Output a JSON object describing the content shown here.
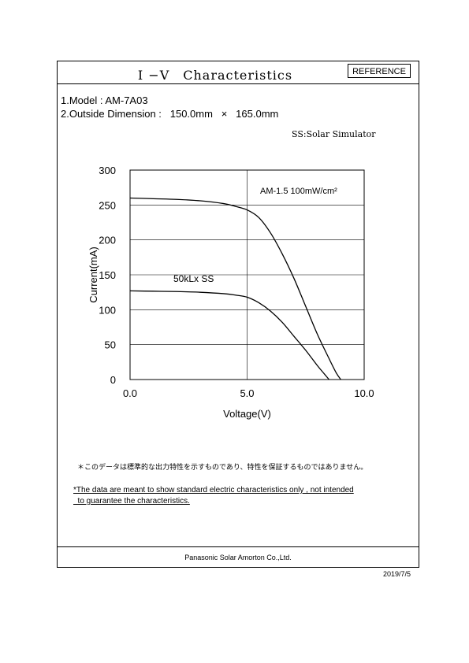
{
  "header": {
    "title": "I −V　Characteristics",
    "reference_label": "REFERENCE"
  },
  "spec": {
    "model": "1.Model : AM-7A03",
    "dimension": "2.Outside Dimension :   150.0mm   ×   165.0mm",
    "simulator_note": "SS:Solar Simulator"
  },
  "chart_data": {
    "type": "line",
    "xlabel": "Voltage(V)",
    "ylabel": "Current(mA)",
    "xlim": [
      0,
      10
    ],
    "ylim": [
      0,
      300
    ],
    "x_ticks": [
      "0.0",
      "5.0",
      "10.0"
    ],
    "y_ticks": [
      "0",
      "50",
      "100",
      "150",
      "200",
      "250",
      "300"
    ],
    "grid": true,
    "series": [
      {
        "name": "AM-1.5 100mW/cm²",
        "x": [
          0,
          1,
          2,
          3,
          4,
          4.5,
          5,
          5.5,
          6,
          6.5,
          7,
          7.5,
          8,
          8.5,
          8.8,
          9.0
        ],
        "y": [
          260,
          259,
          258,
          256,
          252,
          248,
          243,
          232,
          210,
          180,
          145,
          105,
          65,
          30,
          10,
          0
        ]
      },
      {
        "name": "50kLx  SS",
        "x": [
          0,
          1,
          2,
          3,
          4,
          4.5,
          5,
          5.5,
          6,
          6.5,
          7,
          7.5,
          8,
          8.3,
          8.5
        ],
        "y": [
          127,
          126.5,
          126,
          125,
          123,
          121,
          118,
          110,
          98,
          82,
          62,
          42,
          20,
          8,
          0
        ]
      }
    ]
  },
  "notes": {
    "jp": "＊このデータは標準的な出力特性を示すものであり、特性を保証するものではありません。",
    "en_line1": "*The data are meant to show standard electric characteristics only , not  intended",
    "en_line2": "  to guarantee the characteristics."
  },
  "footer": {
    "company": "Panasonic Solar Amorton Co.,Ltd."
  },
  "date": "2019/7/5"
}
